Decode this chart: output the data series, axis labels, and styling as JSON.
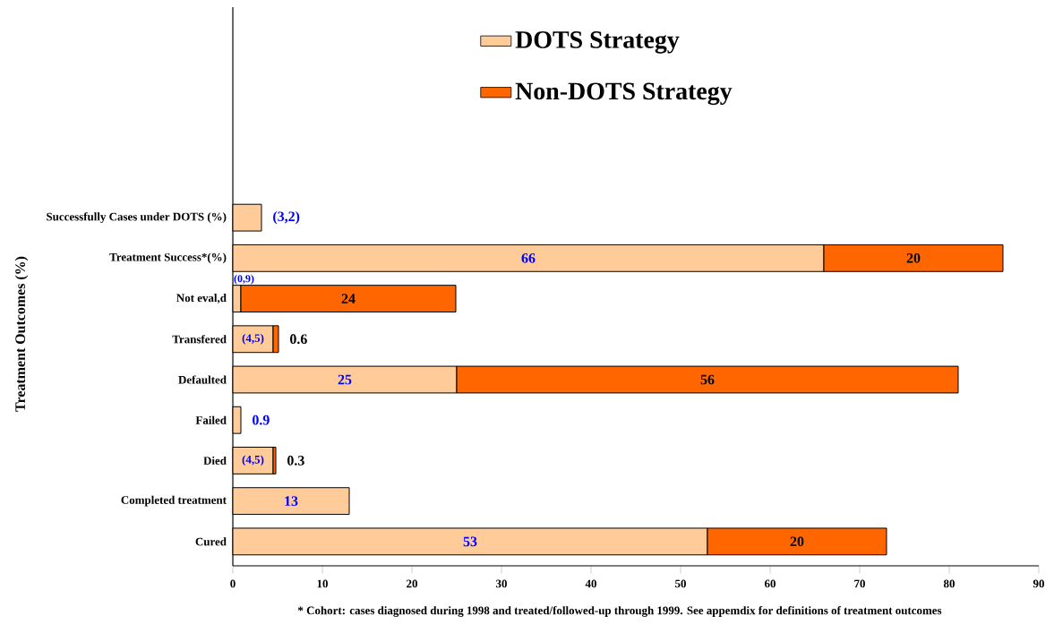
{
  "chart_data": {
    "type": "bar",
    "orientation": "horizontal",
    "stacked": true,
    "ylabel": "Treatment Outcomes (%)",
    "categories": [
      "Successfully Cases under DOTS (%)",
      "Treatment Success*(%)",
      "Not eval,d",
      "Transfered",
      "Defaulted",
      "Failed",
      "Died",
      "Completed treatment",
      "Cured"
    ],
    "series": [
      {
        "name": "DOTS Strategy",
        "color": "#ffcc99",
        "values": [
          3.2,
          66,
          0.9,
          4.5,
          25,
          0.9,
          4.5,
          13,
          53
        ],
        "value_labels": [
          "(3,2)",
          "66",
          "(0,9)",
          "(4,5)",
          "25",
          "0.9",
          "(4,5)",
          "13",
          "53"
        ]
      },
      {
        "name": "Non-DOTS Strategy",
        "color": "#ff6600",
        "values": [
          null,
          20,
          24,
          0.6,
          56,
          null,
          0.3,
          null,
          20
        ],
        "value_labels": [
          null,
          "20",
          "24",
          "0.6",
          "56",
          null,
          "0.3",
          null,
          "20"
        ]
      }
    ],
    "xlim": [
      0,
      90
    ],
    "xticks": [
      0,
      10,
      20,
      30,
      40,
      50,
      60,
      70,
      80,
      90
    ],
    "legend": "top",
    "grid": false,
    "annotations": [
      "* Cohort: cases diagnosed during 1998 and treated/followed-up through 1999. See appemdix for definitions of treatment outcomes"
    ]
  }
}
